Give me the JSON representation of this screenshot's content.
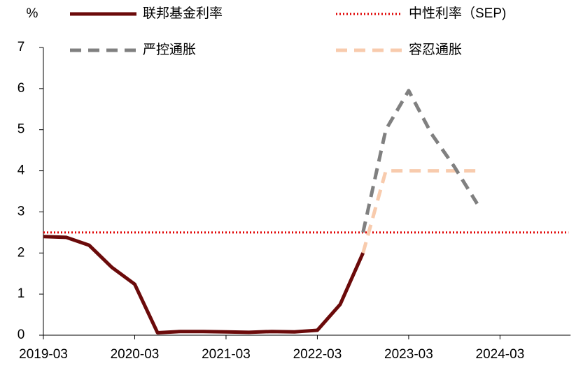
{
  "chart_data": {
    "type": "line",
    "y_unit_label": "%",
    "categories": [
      "2019-03",
      null,
      null,
      null,
      "2020-03",
      null,
      null,
      null,
      "2021-03",
      null,
      null,
      null,
      "2022-03",
      null,
      null,
      null,
      "2023-03",
      null,
      null,
      null,
      "2024-03",
      null,
      null,
      null
    ],
    "series": [
      {
        "name": "联邦基金利率",
        "color": "#6b0a0a",
        "line_style": "solid",
        "values": [
          2.4,
          2.38,
          2.19,
          1.65,
          1.24,
          0.06,
          0.09,
          0.09,
          0.08,
          0.07,
          0.09,
          0.08,
          0.12,
          0.75,
          2.0,
          null,
          null,
          null,
          null,
          null,
          null,
          null,
          null,
          null
        ]
      },
      {
        "name": "中性利率（SEP)",
        "color": "#e00000",
        "line_style": "dotted",
        "values": [
          2.5,
          2.5,
          2.5,
          2.5,
          2.5,
          2.5,
          2.5,
          2.5,
          2.5,
          2.5,
          2.5,
          2.5,
          2.5,
          2.5,
          2.5,
          2.5,
          2.5,
          2.5,
          2.5,
          2.5,
          2.5,
          2.5,
          2.5,
          2.5
        ]
      },
      {
        "name": "严控通胀",
        "color": "#808080",
        "line_style": "dashed",
        "values": [
          null,
          null,
          null,
          null,
          null,
          null,
          null,
          null,
          null,
          null,
          null,
          null,
          null,
          null,
          2.5,
          5.0,
          5.95,
          4.9,
          4.1,
          3.2,
          null,
          null,
          null,
          null
        ]
      },
      {
        "name": "容忍通胀",
        "color": "#f8cbad",
        "line_style": "dashed",
        "values": [
          null,
          null,
          null,
          null,
          null,
          null,
          null,
          null,
          null,
          null,
          null,
          null,
          null,
          null,
          2.0,
          4.0,
          4.0,
          4.0,
          4.0,
          4.0,
          null,
          null,
          null,
          null
        ]
      }
    ],
    "ylim": [
      0,
      7
    ],
    "yticks": [
      0,
      1,
      2,
      3,
      4,
      5,
      6,
      7
    ]
  }
}
